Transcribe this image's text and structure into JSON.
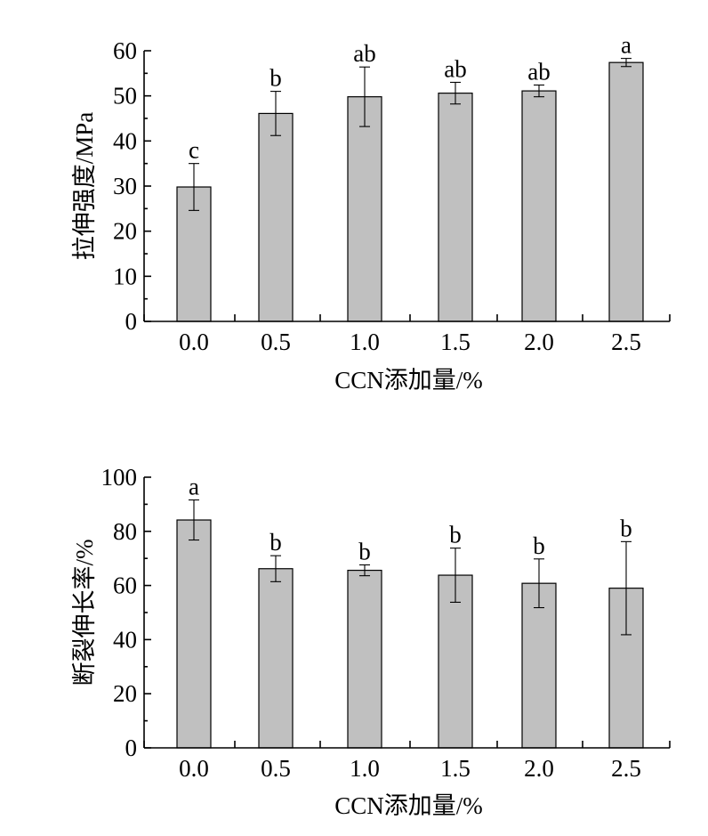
{
  "chart_data": [
    {
      "type": "bar",
      "categories": [
        "0.0",
        "0.5",
        "1.0",
        "1.5",
        "2.0",
        "2.5"
      ],
      "values": [
        29.8,
        46.1,
        49.8,
        50.6,
        51.1,
        57.4
      ],
      "errors": [
        5.2,
        4.9,
        6.6,
        2.4,
        1.3,
        0.9
      ],
      "significance": [
        "c",
        "b",
        "ab",
        "ab",
        "ab",
        "a"
      ],
      "title": "",
      "xlabel": "CCN添加量/%",
      "ylabel": "拉伸强度/MPa",
      "ylim": [
        0,
        60
      ],
      "yticks": [
        "0",
        "10",
        "20",
        "30",
        "40",
        "50",
        "60"
      ],
      "bar_color": "#c0c0c0",
      "grid": false,
      "legend": "none"
    },
    {
      "type": "bar",
      "categories": [
        "0.0",
        "0.5",
        "1.0",
        "1.5",
        "2.0",
        "2.5"
      ],
      "values": [
        84.2,
        66.2,
        65.6,
        63.8,
        60.8,
        59.0
      ],
      "errors": [
        7.4,
        4.8,
        2.0,
        10.0,
        9.0,
        17.2
      ],
      "significance": [
        "a",
        "b",
        "b",
        "b",
        "b",
        "b"
      ],
      "title": "",
      "xlabel": "CCN添加量/%",
      "ylabel": "断裂伸长率/%",
      "ylim": [
        0,
        100
      ],
      "yticks": [
        "0",
        "20",
        "40",
        "60",
        "80",
        "100"
      ],
      "bar_color": "#c0c0c0",
      "grid": false,
      "legend": "none"
    }
  ]
}
